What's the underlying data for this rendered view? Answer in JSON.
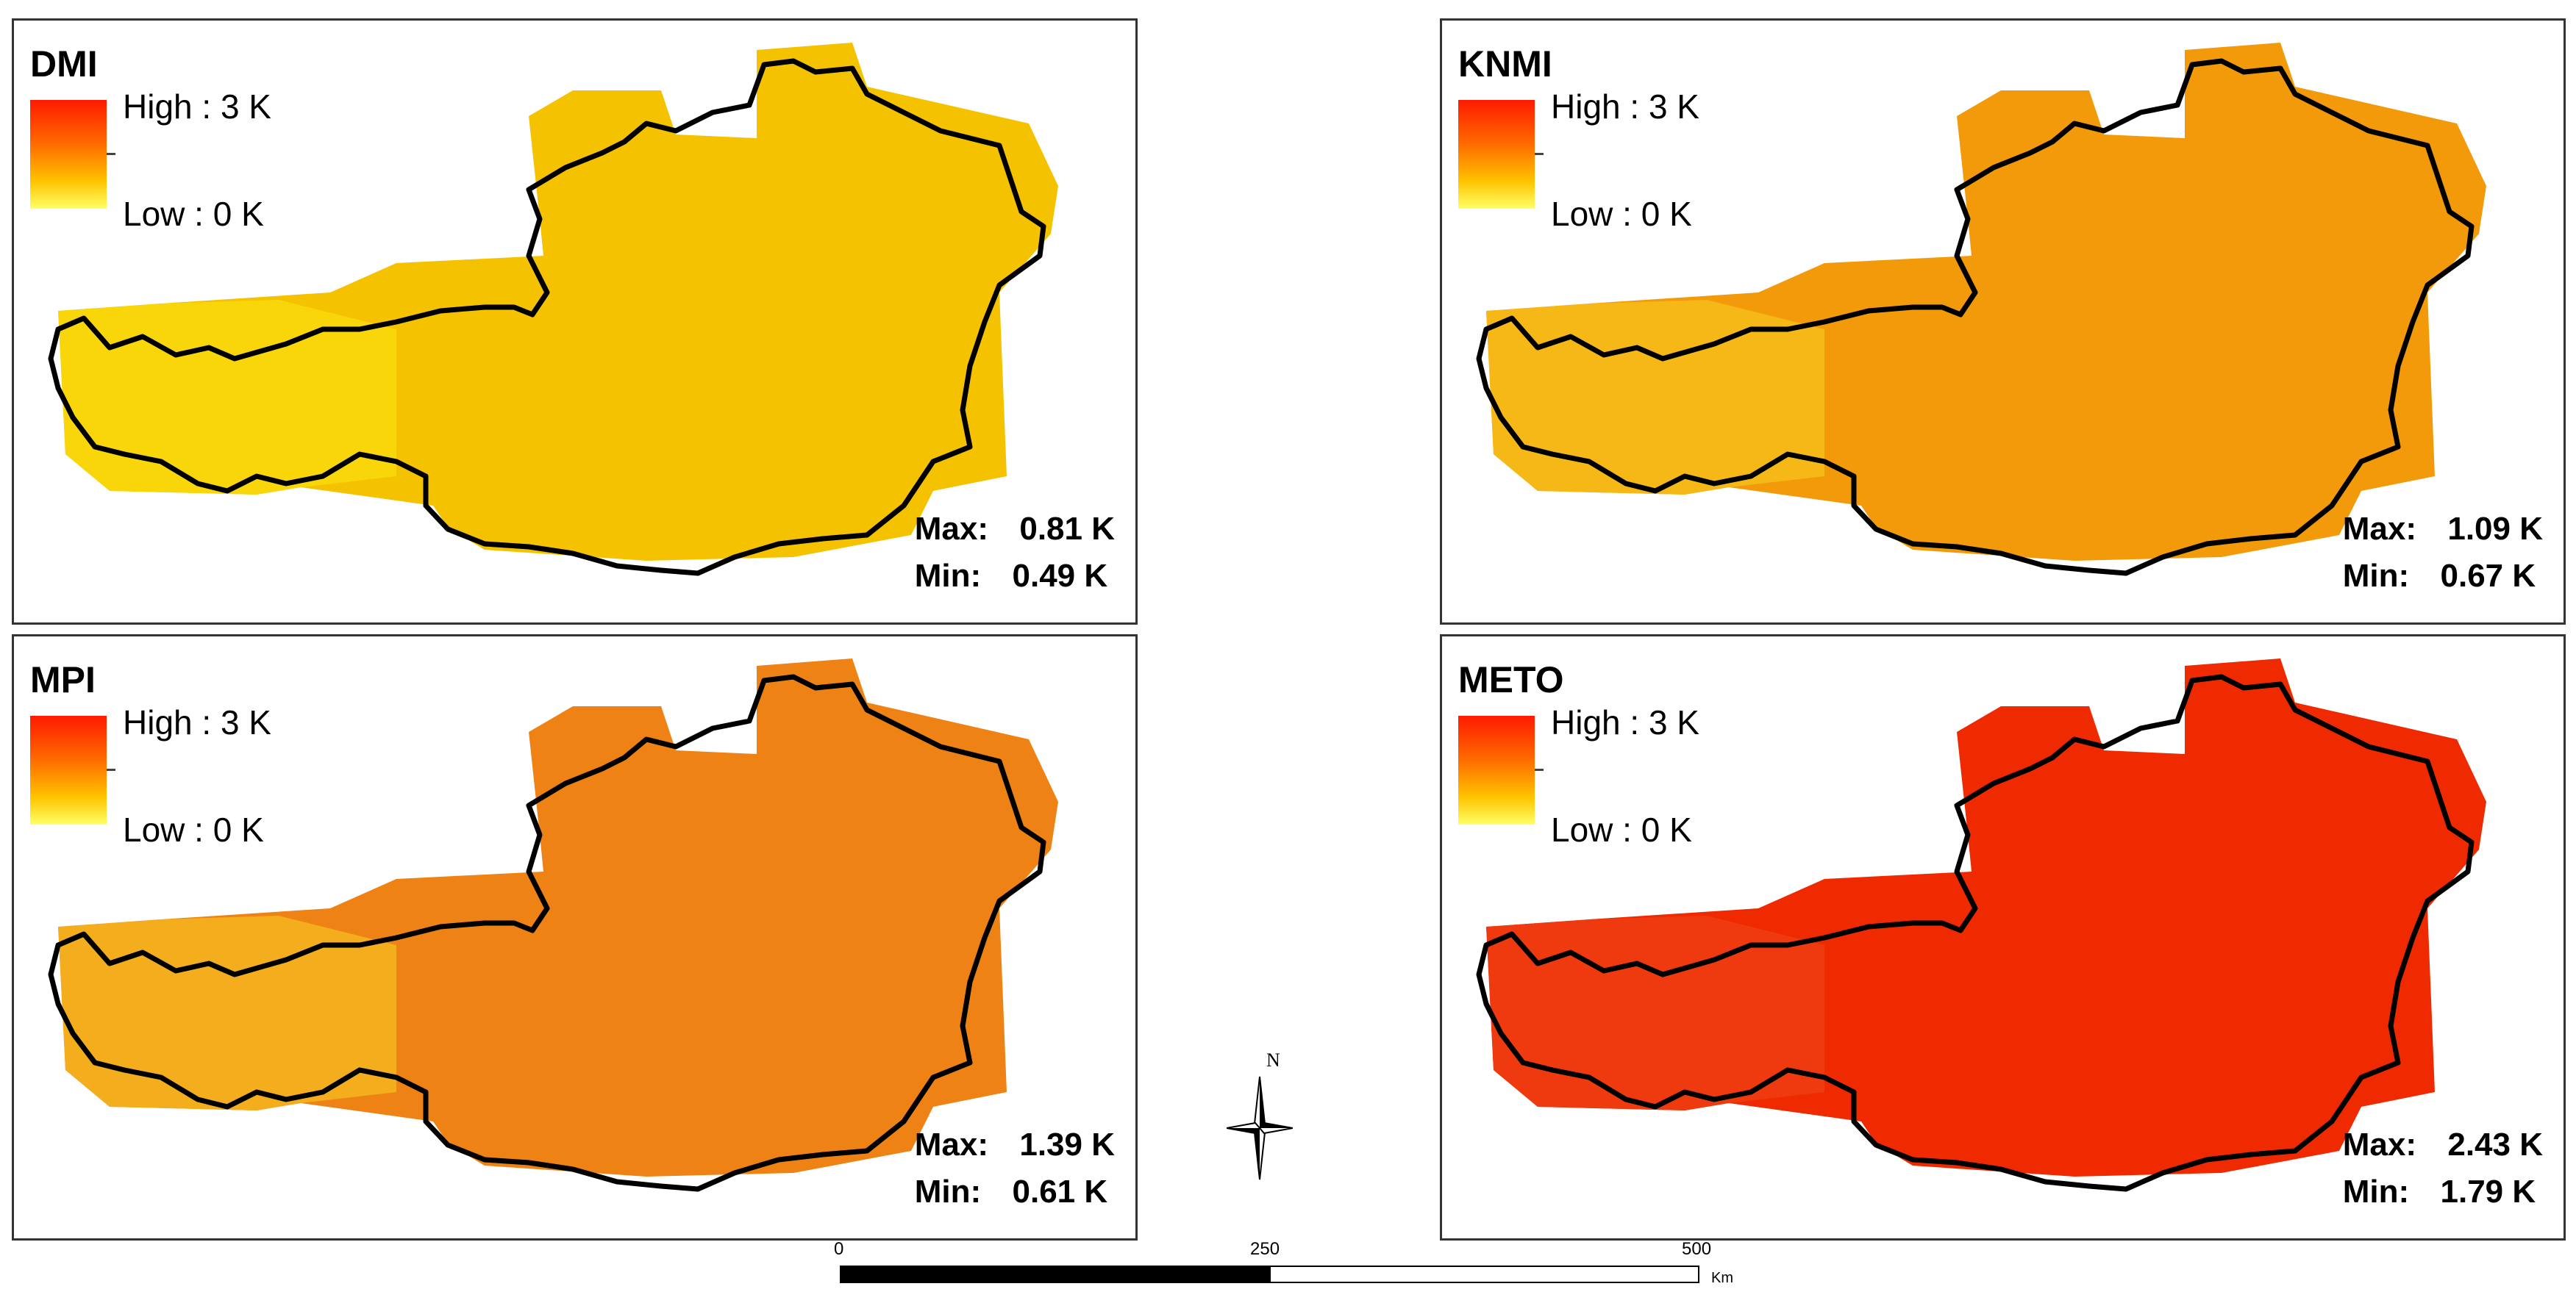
{
  "panels": [
    {
      "id": "dmi",
      "title": "DMI",
      "max": "0.81 K",
      "min": "0.49 K",
      "fill": "#f5c200",
      "fill_west": "#f8d90a"
    },
    {
      "id": "knmi",
      "title": "KNMI",
      "max": "1.09 K",
      "min": "0.67 K",
      "fill": "#f29a0a",
      "fill_west": "#f6bd1a"
    },
    {
      "id": "mpi",
      "title": "MPI",
      "max": "1.39 K",
      "min": "0.61 K",
      "fill": "#ee8215",
      "fill_west": "#f3b51e"
    },
    {
      "id": "meto",
      "title": "METO",
      "max": "2.43 K",
      "min": "1.79 K",
      "fill": "#f02a00",
      "fill_west": "#ee3c10"
    }
  ],
  "legend": {
    "high": "High : 3 K",
    "low": "Low : 0 K",
    "max_label": "Max:",
    "min_label": "Min:"
  },
  "compass": {
    "north": "N"
  },
  "scale": {
    "tick_0": "0",
    "tick_250": "250",
    "tick_500": "500",
    "unit": "Km"
  },
  "colors": {
    "outline": "#000000",
    "ramp_high": "#ff1a00",
    "ramp_low": "#ffff66"
  }
}
